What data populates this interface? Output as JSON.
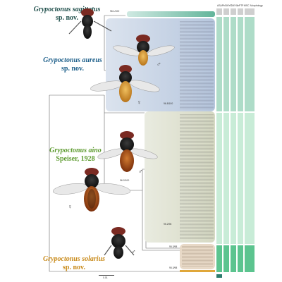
{
  "figure": {
    "header_cols": [
      "ASAP",
      "bGMYC",
      "GMYC",
      "mPTP",
      "MSC"
    ],
    "header_extra": "Morphology",
    "scale": "0.01"
  },
  "species": [
    {
      "genus": "Grypoctonus",
      "epithet": "sagittatus",
      "authority": "sp. nov.",
      "color": "#1f4f4b",
      "sex": "♂"
    },
    {
      "genus": "Grypoctonus",
      "epithet": "aureus",
      "authority": "sp. nov.",
      "color": "#1d5f8a",
      "sex_m": "♂",
      "sex_f": "♀"
    },
    {
      "genus": "Grypoctonus",
      "epithet": "aino",
      "authority": "Speiser, 1928",
      "color": "#5c9a2e",
      "sex_m": "♂",
      "sex_f": "♀"
    },
    {
      "genus": "Grypoctonus",
      "epithet": "solarius",
      "authority": "sp. nov.",
      "color": "#c98b1b",
      "sex": "♂"
    }
  ],
  "nodes": {
    "n1": "96.1/100",
    "n2": "96.8/100",
    "n3": "96.2/100",
    "n4": "95.2/96",
    "n5": "95.3/98",
    "n6": "95.3/98"
  },
  "colors": {
    "sagittatus": "#1f4f4b",
    "aureus": "#1d5f8a",
    "aino": "#5c9a2e",
    "solarius": "#c98b1b"
  }
}
